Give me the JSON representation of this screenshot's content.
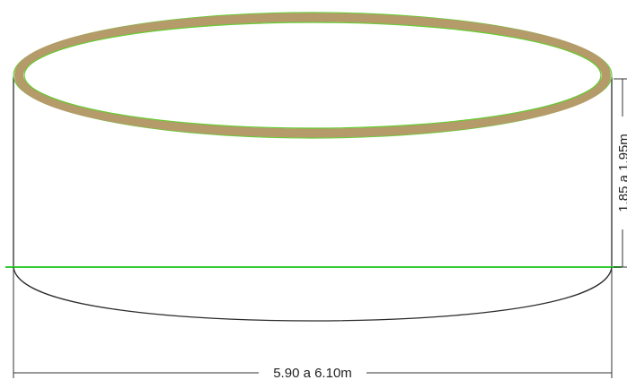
{
  "colors": {
    "rim_fill": "#b59a6a",
    "rim_outline": "#66cc33",
    "waterline": "#33cc33",
    "outline": "#2b2b2b",
    "dimension_line": "#333333",
    "background": "#ffffff"
  },
  "dimensions": {
    "width_label": "5.90 a 6.10m",
    "height_label": "1.85 a 1.95m"
  }
}
